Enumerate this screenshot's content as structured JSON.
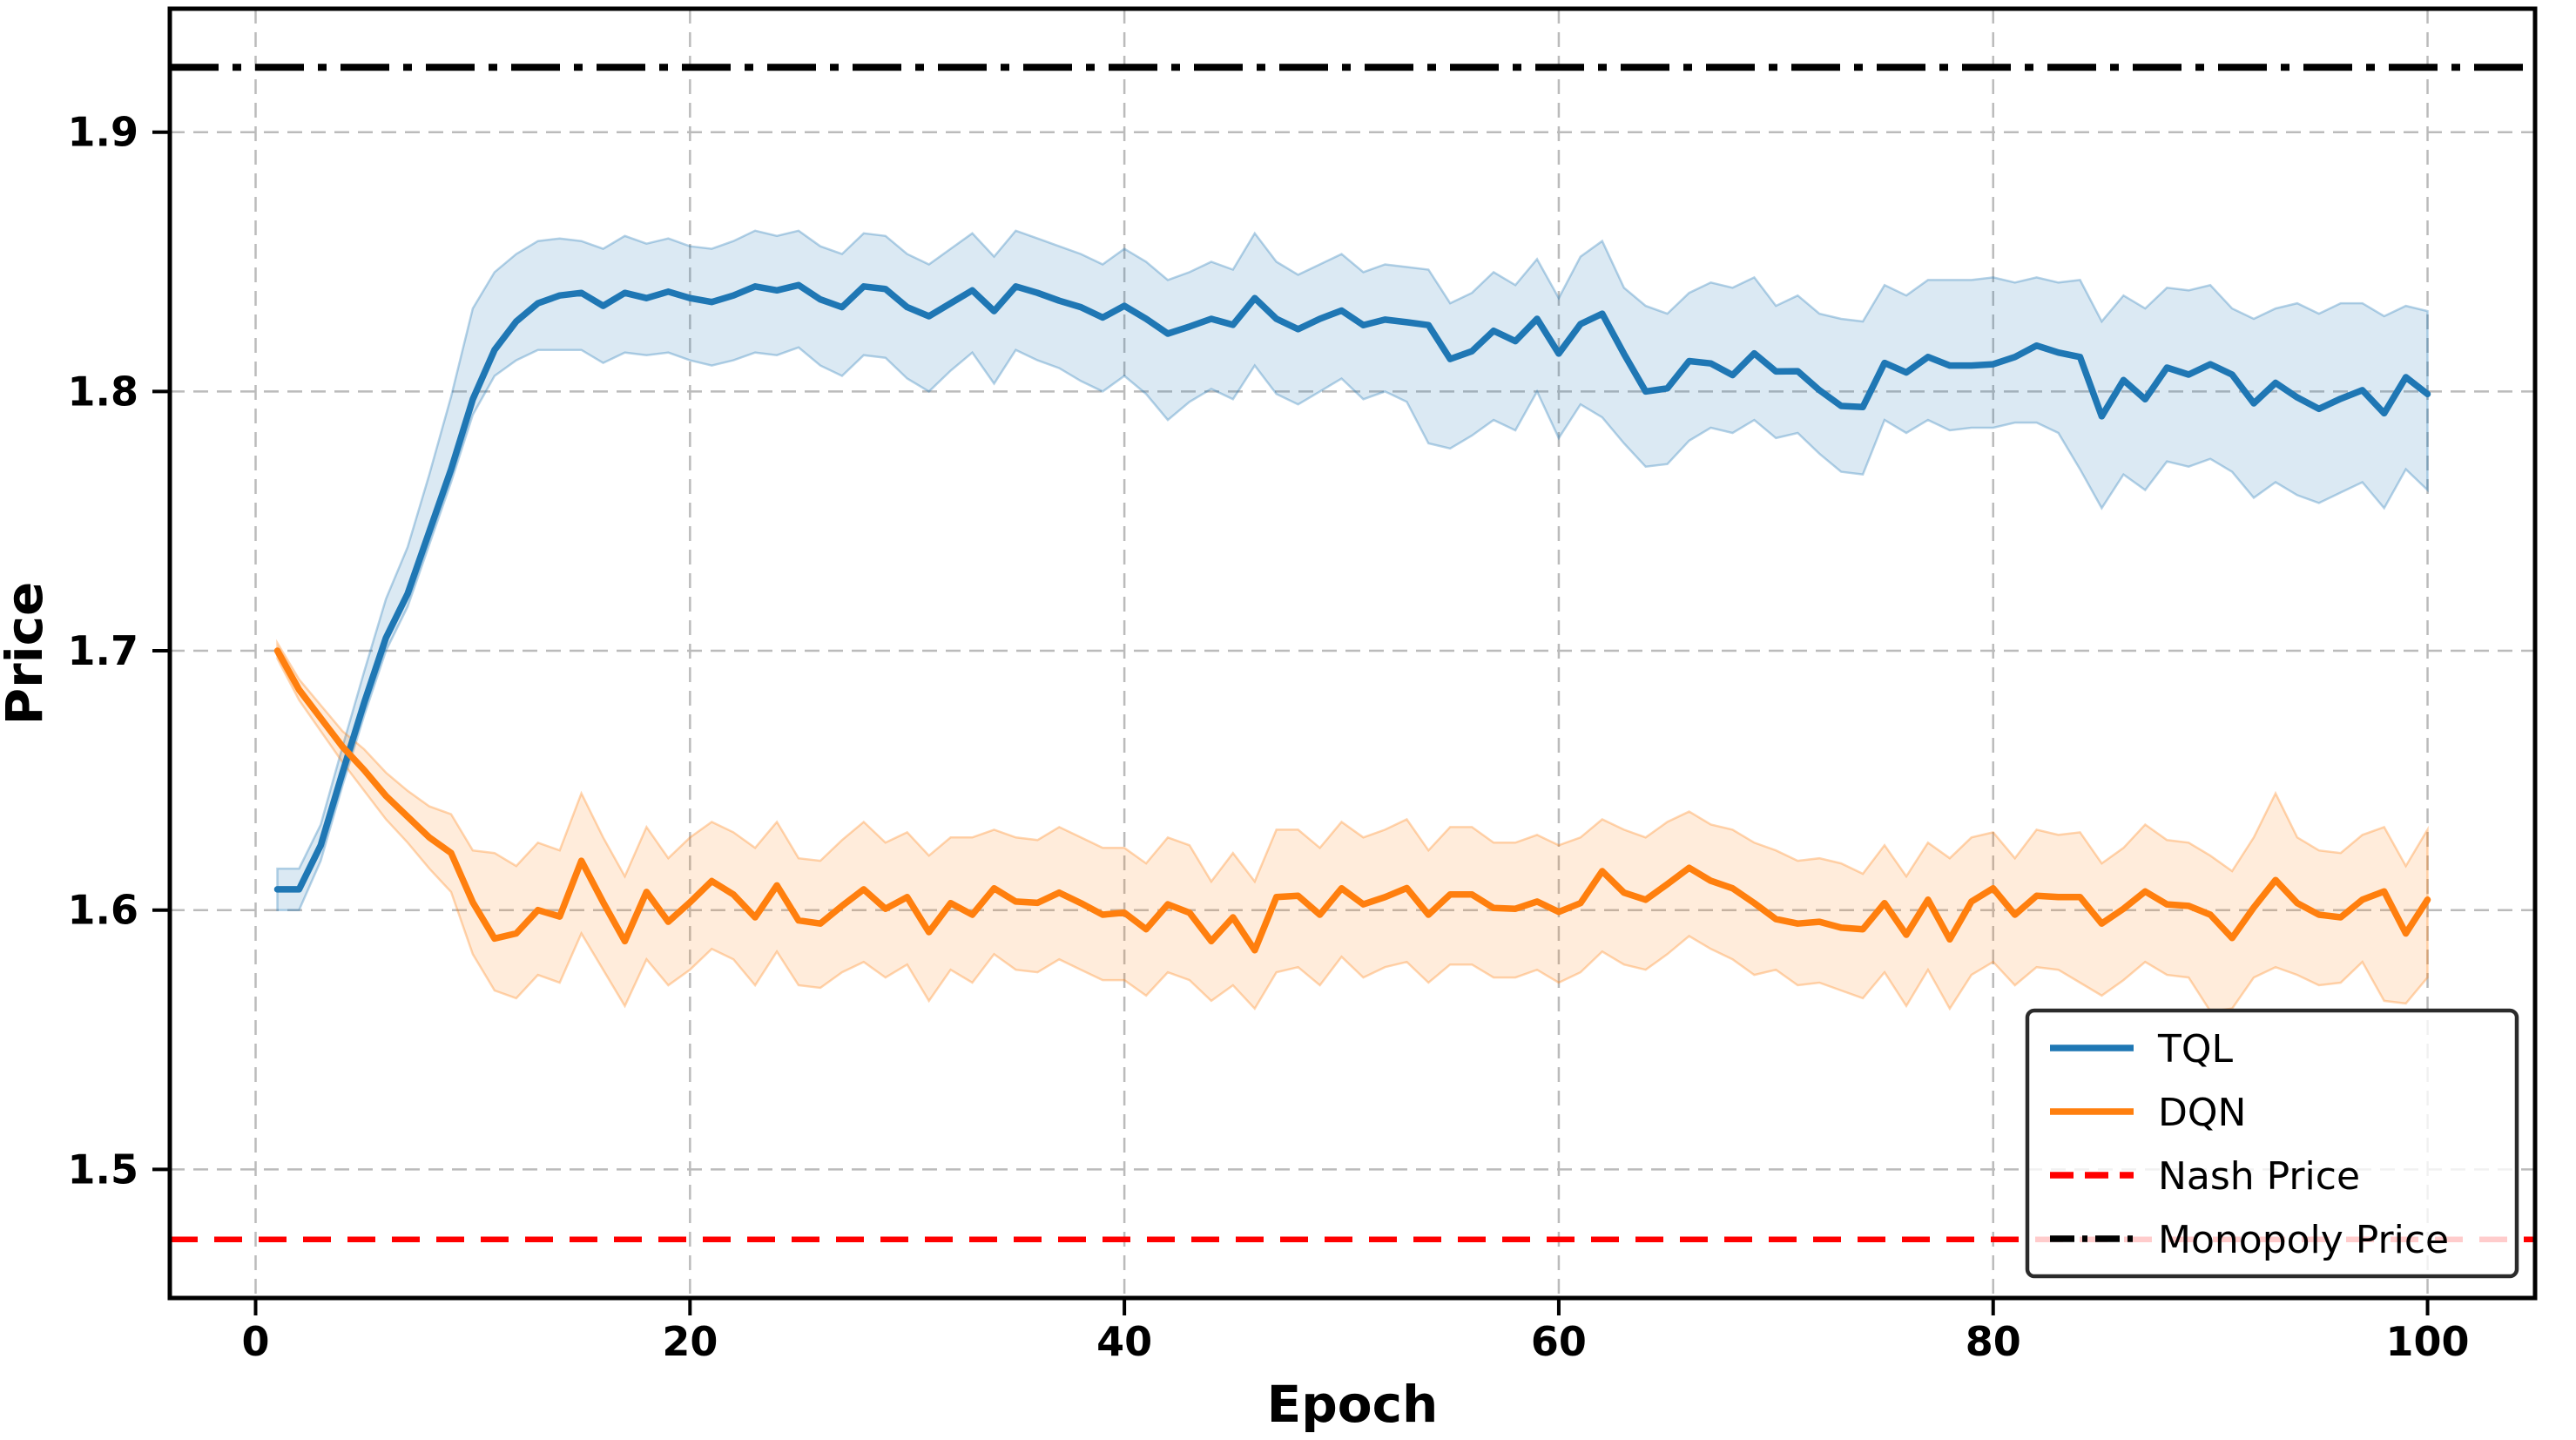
{
  "figure": {
    "xlabel": "Epoch",
    "ylabel": "Price",
    "background": "#ffffff",
    "grid_color": "#bbbbbb",
    "spine_color": "#000000"
  },
  "chart_data": {
    "type": "line",
    "title": "",
    "xlabel": "Epoch",
    "ylabel": "Price",
    "xlim": [
      -3.95,
      104.95
    ],
    "ylim": [
      1.4504,
      1.9476
    ],
    "x_ticks": [
      0,
      20,
      40,
      60,
      80,
      100
    ],
    "y_ticks": [
      1.5,
      1.6,
      1.7,
      1.8,
      1.9
    ],
    "grid": true,
    "x": [
      1,
      2,
      3,
      4,
      5,
      6,
      7,
      8,
      9,
      10,
      11,
      12,
      13,
      14,
      15,
      16,
      17,
      18,
      19,
      20,
      21,
      22,
      23,
      24,
      25,
      26,
      27,
      28,
      29,
      30,
      31,
      32,
      33,
      34,
      35,
      36,
      37,
      38,
      39,
      40,
      41,
      42,
      43,
      44,
      45,
      46,
      47,
      48,
      49,
      50,
      51,
      52,
      53,
      54,
      55,
      56,
      57,
      58,
      59,
      60,
      61,
      62,
      63,
      64,
      65,
      66,
      67,
      68,
      69,
      70,
      71,
      72,
      73,
      74,
      75,
      76,
      77,
      78,
      79,
      80,
      81,
      82,
      83,
      84,
      85,
      86,
      87,
      88,
      89,
      90,
      91,
      92,
      93,
      94,
      95,
      96,
      97,
      98,
      99,
      100
    ],
    "series": [
      {
        "name": "TQL",
        "color": "#1f77b4",
        "band_fill_opacity": 0.16,
        "mean": [
          1.608,
          1.608,
          1.625,
          1.653,
          1.68,
          1.705,
          1.722,
          1.746,
          1.77,
          1.797,
          1.816,
          1.827,
          1.834,
          1.837,
          1.838,
          1.833,
          1.838,
          1.836,
          1.8385,
          1.836,
          1.8345,
          1.837,
          1.8405,
          1.839,
          1.841,
          1.8355,
          1.8325,
          1.8405,
          1.8395,
          1.8325,
          1.829,
          1.834,
          1.839,
          1.831,
          1.8405,
          1.838,
          1.835,
          1.8325,
          1.8285,
          1.833,
          1.828,
          1.8223,
          1.825,
          1.828,
          1.8257,
          1.836,
          1.828,
          1.824,
          1.828,
          1.8312,
          1.8256,
          1.8277,
          1.8267,
          1.8256,
          1.8125,
          1.8155,
          1.8234,
          1.8194,
          1.828,
          1.8146,
          1.826,
          1.83,
          1.8145,
          1.8,
          1.8012,
          1.8117,
          1.8108,
          1.8063,
          1.8147,
          1.8077,
          1.8078,
          1.8005,
          1.7944,
          1.794,
          1.811,
          1.8073,
          1.8133,
          1.81,
          1.81,
          1.8105,
          1.8133,
          1.8177,
          1.815,
          1.8133,
          1.7904,
          1.8044,
          1.797,
          1.8092,
          1.8065,
          1.8105,
          1.8065,
          1.7954,
          1.8033,
          1.7977,
          1.7933,
          1.7972,
          1.8005,
          1.7916,
          1.8055,
          1.799
        ],
        "hi": [
          1.616,
          1.616,
          1.633,
          1.663,
          1.692,
          1.72,
          1.74,
          1.768,
          1.798,
          1.832,
          1.846,
          1.853,
          1.858,
          1.859,
          1.858,
          1.855,
          1.86,
          1.857,
          1.859,
          1.856,
          1.855,
          1.858,
          1.862,
          1.86,
          1.862,
          1.856,
          1.853,
          1.861,
          1.86,
          1.853,
          1.849,
          1.855,
          1.861,
          1.852,
          1.862,
          1.859,
          1.856,
          1.853,
          1.849,
          1.855,
          1.85,
          1.843,
          1.846,
          1.85,
          1.847,
          1.861,
          1.85,
          1.845,
          1.849,
          1.853,
          1.846,
          1.849,
          1.848,
          1.847,
          1.834,
          1.838,
          1.846,
          1.841,
          1.851,
          1.836,
          1.852,
          1.858,
          1.84,
          1.833,
          1.83,
          1.838,
          1.842,
          1.84,
          1.844,
          1.833,
          1.837,
          1.83,
          1.828,
          1.827,
          1.841,
          1.837,
          1.843,
          1.843,
          1.843,
          1.844,
          1.842,
          1.844,
          1.842,
          1.843,
          1.827,
          1.837,
          1.832,
          1.84,
          1.839,
          1.841,
          1.832,
          1.828,
          1.832,
          1.834,
          1.83,
          1.834,
          1.834,
          1.829,
          1.833,
          1.831
        ],
        "lo": [
          1.6,
          1.6,
          1.619,
          1.648,
          1.675,
          1.7,
          1.717,
          1.741,
          1.765,
          1.791,
          1.806,
          1.812,
          1.816,
          1.816,
          1.816,
          1.811,
          1.815,
          1.814,
          1.815,
          1.812,
          1.81,
          1.812,
          1.815,
          1.814,
          1.817,
          1.81,
          1.806,
          1.814,
          1.813,
          1.805,
          1.8,
          1.808,
          1.815,
          1.803,
          1.816,
          1.812,
          1.809,
          1.804,
          1.8,
          1.806,
          1.799,
          1.789,
          1.796,
          1.801,
          1.797,
          1.81,
          1.799,
          1.795,
          1.8,
          1.805,
          1.797,
          1.8,
          1.796,
          1.78,
          1.778,
          1.783,
          1.789,
          1.785,
          1.8,
          1.782,
          1.795,
          1.79,
          1.78,
          1.771,
          1.772,
          1.781,
          1.786,
          1.784,
          1.789,
          1.782,
          1.784,
          1.776,
          1.769,
          1.768,
          1.789,
          1.784,
          1.789,
          1.785,
          1.786,
          1.786,
          1.788,
          1.788,
          1.784,
          1.77,
          1.755,
          1.768,
          1.762,
          1.773,
          1.771,
          1.774,
          1.769,
          1.759,
          1.765,
          1.76,
          1.757,
          1.761,
          1.765,
          1.755,
          1.77,
          1.762
        ]
      },
      {
        "name": "DQN",
        "color": "#ff7f0e",
        "band_fill_opacity": 0.15,
        "mean": [
          1.7,
          1.685,
          1.674,
          1.663,
          1.654,
          1.644,
          1.636,
          1.628,
          1.622,
          1.603,
          1.589,
          1.591,
          1.6,
          1.5975,
          1.619,
          1.603,
          1.588,
          1.607,
          1.5955,
          1.603,
          1.6112,
          1.606,
          1.5972,
          1.6095,
          1.596,
          1.5948,
          1.6016,
          1.608,
          1.6005,
          1.605,
          1.5915,
          1.6027,
          1.5982,
          1.6084,
          1.6033,
          1.6028,
          1.6067,
          1.6027,
          1.5982,
          1.599,
          1.5926,
          1.6022,
          1.599,
          1.588,
          1.5972,
          1.5845,
          1.605,
          1.6055,
          1.5982,
          1.6084,
          1.6022,
          1.605,
          1.6085,
          1.5982,
          1.606,
          1.606,
          1.6008,
          1.6005,
          1.6033,
          1.5993,
          1.6027,
          1.615,
          1.6067,
          1.604,
          1.61,
          1.6163,
          1.6113,
          1.6084,
          1.6027,
          1.5965,
          1.5948,
          1.5955,
          1.5932,
          1.5926,
          1.6027,
          1.5905,
          1.604,
          1.5887,
          1.6033,
          1.6084,
          1.5982,
          1.6055,
          1.605,
          1.605,
          1.5948,
          1.6005,
          1.6072,
          1.6022,
          1.6016,
          1.5982,
          1.5892,
          1.601,
          1.6116,
          1.6027,
          1.5982,
          1.5972,
          1.604,
          1.6072,
          1.591,
          1.604
        ],
        "hi": [
          1.703,
          1.689,
          1.679,
          1.669,
          1.662,
          1.653,
          1.646,
          1.64,
          1.637,
          1.623,
          1.622,
          1.617,
          1.626,
          1.623,
          1.645,
          1.628,
          1.613,
          1.632,
          1.62,
          1.628,
          1.634,
          1.63,
          1.624,
          1.634,
          1.62,
          1.619,
          1.627,
          1.634,
          1.626,
          1.63,
          1.621,
          1.628,
          1.628,
          1.631,
          1.628,
          1.627,
          1.632,
          1.628,
          1.624,
          1.624,
          1.618,
          1.628,
          1.625,
          1.611,
          1.622,
          1.611,
          1.631,
          1.631,
          1.624,
          1.634,
          1.628,
          1.631,
          1.635,
          1.623,
          1.632,
          1.632,
          1.626,
          1.626,
          1.629,
          1.625,
          1.628,
          1.635,
          1.631,
          1.628,
          1.634,
          1.638,
          1.633,
          1.631,
          1.626,
          1.623,
          1.619,
          1.62,
          1.618,
          1.614,
          1.625,
          1.613,
          1.626,
          1.62,
          1.628,
          1.63,
          1.62,
          1.631,
          1.629,
          1.63,
          1.618,
          1.624,
          1.633,
          1.627,
          1.626,
          1.621,
          1.615,
          1.628,
          1.645,
          1.628,
          1.623,
          1.622,
          1.629,
          1.632,
          1.617,
          1.631
        ],
        "lo": [
          1.697,
          1.681,
          1.669,
          1.657,
          1.646,
          1.635,
          1.626,
          1.616,
          1.607,
          1.583,
          1.569,
          1.566,
          1.575,
          1.572,
          1.591,
          1.577,
          1.563,
          1.581,
          1.571,
          1.577,
          1.585,
          1.581,
          1.571,
          1.584,
          1.571,
          1.57,
          1.576,
          1.58,
          1.574,
          1.579,
          1.565,
          1.577,
          1.572,
          1.583,
          1.577,
          1.576,
          1.581,
          1.577,
          1.573,
          1.573,
          1.567,
          1.576,
          1.573,
          1.565,
          1.571,
          1.562,
          1.576,
          1.578,
          1.571,
          1.582,
          1.574,
          1.578,
          1.58,
          1.572,
          1.579,
          1.579,
          1.574,
          1.574,
          1.577,
          1.572,
          1.576,
          1.584,
          1.579,
          1.577,
          1.583,
          1.59,
          1.585,
          1.581,
          1.575,
          1.577,
          1.571,
          1.572,
          1.569,
          1.566,
          1.576,
          1.563,
          1.577,
          1.562,
          1.575,
          1.58,
          1.571,
          1.578,
          1.577,
          1.572,
          1.567,
          1.573,
          1.58,
          1.575,
          1.574,
          1.561,
          1.562,
          1.574,
          1.578,
          1.575,
          1.571,
          1.572,
          1.58,
          1.565,
          1.564,
          1.574
        ]
      }
    ],
    "hlines": [
      {
        "label": "Nash Price",
        "value": 1.473,
        "color": "#ff0000",
        "style": "dashed"
      },
      {
        "label": "Monopoly Price",
        "value": 1.925,
        "color": "#000000",
        "style": "dashdot"
      }
    ],
    "legend_position": "lower right",
    "legend": {
      "entries": [
        {
          "label": "TQL",
          "color": "#1f77b4",
          "style": "solid"
        },
        {
          "label": "DQN",
          "color": "#ff7f0e",
          "style": "solid"
        },
        {
          "label": "Nash Price",
          "color": "#ff0000",
          "style": "dashed"
        },
        {
          "label": "Monopoly Price",
          "color": "#000000",
          "style": "dashdot"
        }
      ]
    }
  }
}
